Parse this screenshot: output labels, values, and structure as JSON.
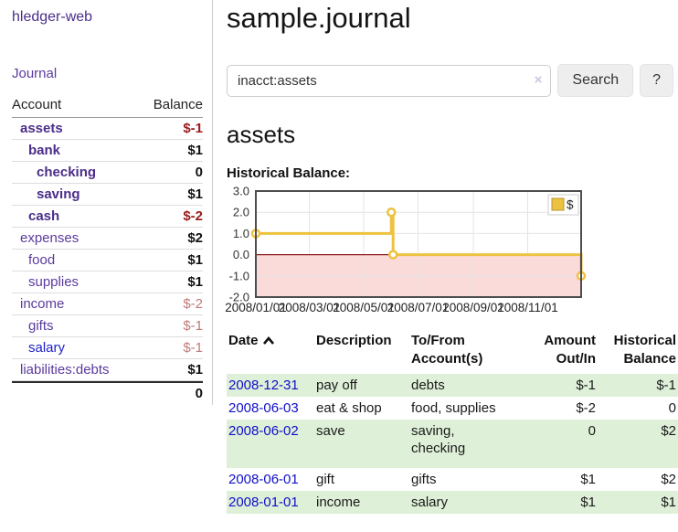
{
  "sidebar": {
    "brand": "hledger-web",
    "journal_link": "Journal",
    "accounts": {
      "headers": {
        "account": "Account",
        "balance": "Balance"
      },
      "rows": [
        {
          "name": "assets",
          "balance": "$-1"
        },
        {
          "name": "bank",
          "balance": "$1"
        },
        {
          "name": "checking",
          "balance": "0"
        },
        {
          "name": "saving",
          "balance": "$1"
        },
        {
          "name": "cash",
          "balance": "$-2"
        },
        {
          "name": "expenses",
          "balance": "$2"
        },
        {
          "name": "food",
          "balance": "$1"
        },
        {
          "name": "supplies",
          "balance": "$1"
        },
        {
          "name": "income",
          "balance": "$-2"
        },
        {
          "name": "gifts",
          "balance": "$-1"
        },
        {
          "name": "salary",
          "balance": "$-1"
        },
        {
          "name": "liabilities:debts",
          "balance": "$1"
        }
      ],
      "total": "0"
    }
  },
  "main": {
    "title": "sample.journal",
    "search": {
      "value": "inacct:assets",
      "clear_icon": "×",
      "search_button": "Search",
      "help_button": "?"
    },
    "account_heading": "assets",
    "chart_label": "Historical Balance:"
  },
  "chart_data": {
    "type": "line",
    "title": "Historical Balance:",
    "legend": [
      {
        "label": "$",
        "color": "#edc240"
      }
    ],
    "legend_position": "top-right",
    "grid": true,
    "ylim": [
      -2,
      3
    ],
    "y_ticks": [
      {
        "value": 3,
        "label": "3.0"
      },
      {
        "value": 2,
        "label": "2.0"
      },
      {
        "value": 1,
        "label": "1.0"
      },
      {
        "value": 0,
        "label": "0.0"
      },
      {
        "value": -1,
        "label": "-1.0"
      },
      {
        "value": -2,
        "label": "-2.0"
      }
    ],
    "x_total_days": 365,
    "x_ticks": [
      {
        "day": 0,
        "label": "2008/01/01"
      },
      {
        "day": 60,
        "label": "2008/03/01"
      },
      {
        "day": 121,
        "label": "2008/05/01"
      },
      {
        "day": 182,
        "label": "2008/07/01"
      },
      {
        "day": 244,
        "label": "2008/09/01"
      },
      {
        "day": 305,
        "label": "2008/11/01"
      }
    ],
    "series": [
      {
        "name": "$",
        "step": true,
        "points": [
          {
            "day": 0,
            "y": 1
          },
          {
            "day": 152,
            "y": 2
          },
          {
            "day": 154,
            "y": 0
          },
          {
            "day": 365,
            "y": -1
          }
        ]
      }
    ],
    "colors": {
      "line": "#edc240",
      "marker_fill": "#ffffff",
      "negative_region": "#fbdada",
      "zero_line": "#8b1a1a",
      "grid": "#e4e4e4",
      "border": "#4d4d4d",
      "legend_border": "#cccccc",
      "legend_swatch_border": "#b8962e"
    }
  },
  "transactions": {
    "headers": {
      "date": "Date",
      "description": "Description",
      "tofrom": "To/From Account(s)",
      "amount": "Amount Out/In",
      "balance": "Historical Balance"
    },
    "rows": [
      {
        "date": "2008-12-31",
        "description": "pay off",
        "tofrom": "debts",
        "amount": "$-1",
        "balance": "$-1"
      },
      {
        "date": "2008-06-03",
        "description": "eat & shop",
        "tofrom": "food, supplies",
        "amount": "$-2",
        "balance": "0"
      },
      {
        "date": "2008-06-02",
        "description": "save",
        "tofrom": "saving,\nchecking",
        "amount": "0",
        "balance": "$2"
      },
      {
        "date": "2008-06-01",
        "description": "gift",
        "tofrom": "gifts",
        "amount": "$1",
        "balance": "$2"
      },
      {
        "date": "2008-01-01",
        "description": "income",
        "tofrom": "salary",
        "amount": "$1",
        "balance": "$1"
      }
    ]
  }
}
